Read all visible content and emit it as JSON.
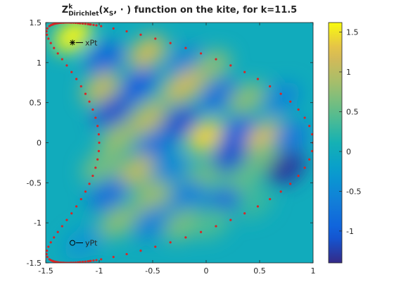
{
  "chart_data": {
    "type": "heatmap",
    "title": {
      "main": "Z",
      "sup": "k",
      "sub": "Dirichlet",
      "args_open": "(x",
      "args_sub": "S",
      "args_rest": ", · ) function on the kite, for k=11.5"
    },
    "xlim": [
      -1.5,
      1
    ],
    "ylim": [
      -1.5,
      1.5
    ],
    "xticks": [
      -1.5,
      -1,
      -0.5,
      0,
      0.5,
      1
    ],
    "xtick_labels": [
      "-1.5",
      "-1",
      "-0.5",
      "0",
      "0.5",
      "1"
    ],
    "yticks": [
      1.5,
      1,
      0.5,
      0,
      -0.5,
      -1,
      -1.5
    ],
    "ytick_labels": [
      "1.5",
      "1",
      "0.5",
      "0",
      "-0.5",
      "-1",
      "-1.5"
    ],
    "colorbar": {
      "range": [
        -1.4,
        1.62
      ],
      "ticks": [
        1.5,
        1,
        0.5,
        0,
        -0.5,
        -1
      ],
      "tick_labels": [
        "1.5",
        "1",
        "0.5",
        "0",
        "-0.5",
        "-1"
      ],
      "colormap": "parula"
    },
    "background_value": 0,
    "blobs": [
      {
        "x": -1.25,
        "y": 1.33,
        "value": 1.6
      },
      {
        "x": -0.95,
        "y": 1.05,
        "value": -0.9
      },
      {
        "x": -0.55,
        "y": 1.13,
        "value": 1.1
      },
      {
        "x": -0.2,
        "y": 1.0,
        "value": -0.6
      },
      {
        "x": 0.05,
        "y": 0.95,
        "value": 0.7
      },
      {
        "x": -0.98,
        "y": 0.68,
        "value": 1.0
      },
      {
        "x": -0.62,
        "y": 0.72,
        "value": -1.0
      },
      {
        "x": -0.35,
        "y": 0.62,
        "value": 0.3
      },
      {
        "x": -0.2,
        "y": 0.7,
        "value": 1.1
      },
      {
        "x": 0.12,
        "y": 0.6,
        "value": -0.8
      },
      {
        "x": 0.38,
        "y": 0.55,
        "value": 0.7
      },
      {
        "x": 0.7,
        "y": 0.55,
        "value": -0.5
      },
      {
        "x": -0.88,
        "y": 0.38,
        "value": -1.1
      },
      {
        "x": -0.55,
        "y": 0.3,
        "value": 1.0
      },
      {
        "x": -0.25,
        "y": 0.25,
        "value": -1.1
      },
      {
        "x": 0.0,
        "y": 0.08,
        "value": 1.4
      },
      {
        "x": 0.3,
        "y": 0.12,
        "value": -1.0
      },
      {
        "x": 0.55,
        "y": 0.05,
        "value": 1.3
      },
      {
        "x": 0.78,
        "y": 0.05,
        "value": -0.7
      },
      {
        "x": -0.82,
        "y": 0.05,
        "value": 0.8
      },
      {
        "x": -0.5,
        "y": -0.05,
        "value": -0.8
      },
      {
        "x": 0.22,
        "y": -0.18,
        "value": -1.1
      },
      {
        "x": 0.52,
        "y": -0.2,
        "value": 0.6
      },
      {
        "x": 0.75,
        "y": -0.32,
        "value": -1.3
      },
      {
        "x": -0.98,
        "y": -0.3,
        "value": 0.6
      },
      {
        "x": -0.65,
        "y": -0.35,
        "value": 1.0
      },
      {
        "x": -0.35,
        "y": -0.35,
        "value": -0.5
      },
      {
        "x": -0.05,
        "y": -0.45,
        "value": 0.6
      },
      {
        "x": 0.3,
        "y": -0.5,
        "value": 0.5
      },
      {
        "x": -0.92,
        "y": -0.65,
        "value": -0.8
      },
      {
        "x": -0.5,
        "y": -0.68,
        "value": 0.8
      },
      {
        "x": -0.18,
        "y": -0.68,
        "value": -0.6
      },
      {
        "x": 0.15,
        "y": -0.78,
        "value": -1.0
      },
      {
        "x": 0.45,
        "y": -0.75,
        "value": 0.3
      },
      {
        "x": -0.82,
        "y": -0.98,
        "value": 0.7
      },
      {
        "x": -0.5,
        "y": -1.0,
        "value": -0.6
      },
      {
        "x": -0.22,
        "y": -1.02,
        "value": 0.6
      },
      {
        "x": 0.05,
        "y": -1.0,
        "value": 0.4
      },
      {
        "x": -1.15,
        "y": -1.25,
        "value": -0.3
      }
    ],
    "boundary_curve": {
      "shape": "kite",
      "equation": "x = cos(t) + 0.65 cos(2t) - 0.65, y = 1.5 sin(t)",
      "marker_color": "#d62728"
    },
    "annotations": [
      {
        "label": "xPt",
        "x": -1.25,
        "y": 1.25,
        "marker": "asterisk"
      },
      {
        "label": "yPt",
        "x": -1.25,
        "y": -1.25,
        "marker": "circle"
      }
    ]
  }
}
